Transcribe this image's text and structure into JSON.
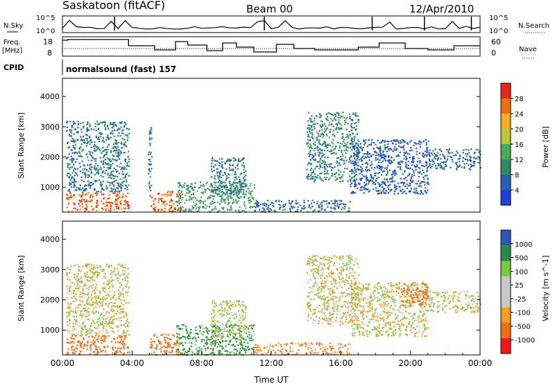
{
  "header": {
    "station": "Saskatoon (fitACF)",
    "beam": "Beam 00",
    "date": "12/Apr/2010"
  },
  "top_panels": {
    "nsky_label": "N.Sky",
    "nsky_ticks": [
      "10^5",
      "10^0"
    ],
    "nsearch_label": "N.Search",
    "nsearch_ticks": [
      "10^5",
      "10^0"
    ],
    "freq_label": "Freq.",
    "freq_unit": "[MHz]",
    "freq_ticks": [
      "18",
      "8"
    ],
    "nave_label": "Nave",
    "nave_ticks": [
      "60",
      "0"
    ],
    "cpid_label": "CPID",
    "cpid_value": "normalsound (fast) 157"
  },
  "colors": {
    "power_scale": [
      "#1f3fd8",
      "#2a5fb4",
      "#2e8a64",
      "#4da85a",
      "#b9c640",
      "#f0b020",
      "#ee7010",
      "#e62818"
    ],
    "velocity_scale": [
      "#ee1a1a",
      "#f0701a",
      "#f4a020",
      "#d8d8d8",
      "#d8d8d8",
      "#7cc840",
      "#2e8a48",
      "#2d58b8"
    ],
    "velocity_gray": "#c8c8c8"
  },
  "time_axis": {
    "label": "Time UT",
    "ticks": [
      "00:00",
      "04:00",
      "08:00",
      "12:00",
      "16:00",
      "20:00",
      "00:00"
    ]
  },
  "chart_data": [
    {
      "type": "heatmap",
      "title": "Power",
      "xlabel": "Time UT",
      "ylabel": "Slant Range [km]",
      "colorbar_label": "Power [dB]",
      "colorbar_ticks": [
        "28",
        "24",
        "20",
        "16",
        "12",
        "8",
        "4"
      ],
      "xlim": [
        0,
        24
      ],
      "ylim": [
        180,
        4600
      ],
      "yticks": [
        1000,
        2000,
        3000,
        4000
      ],
      "zlim": [
        0,
        32
      ],
      "regions": [
        {
          "t": [
            0.2,
            3.8
          ],
          "r": [
            200,
            850
          ],
          "z": 27
        },
        {
          "t": [
            0.2,
            3.8
          ],
          "r": [
            850,
            3200
          ],
          "z": 8
        },
        {
          "t": [
            5.0,
            6.8
          ],
          "r": [
            200,
            900
          ],
          "z": 27
        },
        {
          "t": [
            4.9,
            5.1
          ],
          "r": [
            900,
            3000
          ],
          "z": 8
        },
        {
          "t": [
            6.5,
            11.0
          ],
          "r": [
            200,
            1200
          ],
          "z": 12
        },
        {
          "t": [
            8.5,
            10.5
          ],
          "r": [
            700,
            2000
          ],
          "z": 8
        },
        {
          "t": [
            11.0,
            16.5
          ],
          "r": [
            200,
            600
          ],
          "z": 6
        },
        {
          "t": [
            14.0,
            17.0
          ],
          "r": [
            1200,
            3500
          ],
          "z": 10
        },
        {
          "t": [
            16.5,
            21.0
          ],
          "r": [
            800,
            2600
          ],
          "z": 5
        },
        {
          "t": [
            21.0,
            24.0
          ],
          "r": [
            1600,
            2300
          ],
          "z": 7
        }
      ]
    },
    {
      "type": "heatmap",
      "title": "Velocity",
      "xlabel": "Time UT",
      "ylabel": "Slant Range [km]",
      "colorbar_label": "Velocity [m s^-1]",
      "colorbar_ticks": [
        "1000",
        "500",
        "100",
        "25",
        "-25",
        "-100",
        "-500",
        "-1000"
      ],
      "xlim": [
        0,
        24
      ],
      "ylim": [
        180,
        4600
      ],
      "yticks": [
        1000,
        2000,
        3000,
        4000
      ],
      "regions": [
        {
          "t": [
            0.2,
            3.8
          ],
          "r": [
            200,
            850
          ],
          "v": -300
        },
        {
          "t": [
            0.2,
            3.8
          ],
          "r": [
            850,
            3200
          ],
          "v": 0
        },
        {
          "t": [
            5.0,
            6.8
          ],
          "r": [
            200,
            900
          ],
          "v": -300
        },
        {
          "t": [
            6.5,
            11.0
          ],
          "r": [
            200,
            1200
          ],
          "v": 150
        },
        {
          "t": [
            8.5,
            10.5
          ],
          "r": [
            700,
            2000
          ],
          "v": 0
        },
        {
          "t": [
            11.0,
            16.5
          ],
          "r": [
            200,
            600
          ],
          "v": -80
        },
        {
          "t": [
            14.0,
            17.0
          ],
          "r": [
            1200,
            3500
          ],
          "v": 0
        },
        {
          "t": [
            16.5,
            21.0
          ],
          "r": [
            800,
            2600
          ],
          "v": 0
        },
        {
          "t": [
            19.5,
            21.0
          ],
          "r": [
            1800,
            2600
          ],
          "v": -300
        },
        {
          "t": [
            21.0,
            24.0
          ],
          "r": [
            1600,
            2300
          ],
          "v": 0
        }
      ]
    }
  ]
}
